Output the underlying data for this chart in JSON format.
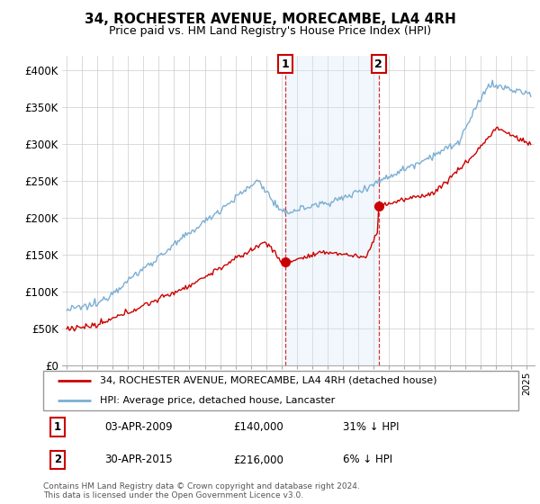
{
  "title": "34, ROCHESTER AVENUE, MORECAMBE, LA4 4RH",
  "subtitle": "Price paid vs. HM Land Registry's House Price Index (HPI)",
  "ylabel_ticks": [
    "£0",
    "£50K",
    "£100K",
    "£150K",
    "£200K",
    "£250K",
    "£300K",
    "£350K",
    "£400K"
  ],
  "ytick_vals": [
    0,
    50000,
    100000,
    150000,
    200000,
    250000,
    300000,
    350000,
    400000
  ],
  "ylim": [
    0,
    420000
  ],
  "sale1_date": "03-APR-2009",
  "sale1_price": 140000,
  "sale1_pct": "31% ↓ HPI",
  "sale1_x": 2009.25,
  "sale2_date": "30-APR-2015",
  "sale2_price": 216000,
  "sale2_pct": "6% ↓ HPI",
  "sale2_x": 2015.33,
  "legend_house": "34, ROCHESTER AVENUE, MORECAMBE, LA4 4RH (detached house)",
  "legend_hpi": "HPI: Average price, detached house, Lancaster",
  "footer1": "Contains HM Land Registry data © Crown copyright and database right 2024.",
  "footer2": "This data is licensed under the Open Government Licence v3.0.",
  "hpi_color": "#7bafd4",
  "house_color": "#cc0000",
  "shade_color": "#d8eaf7",
  "marker_box_color": "#cc0000"
}
